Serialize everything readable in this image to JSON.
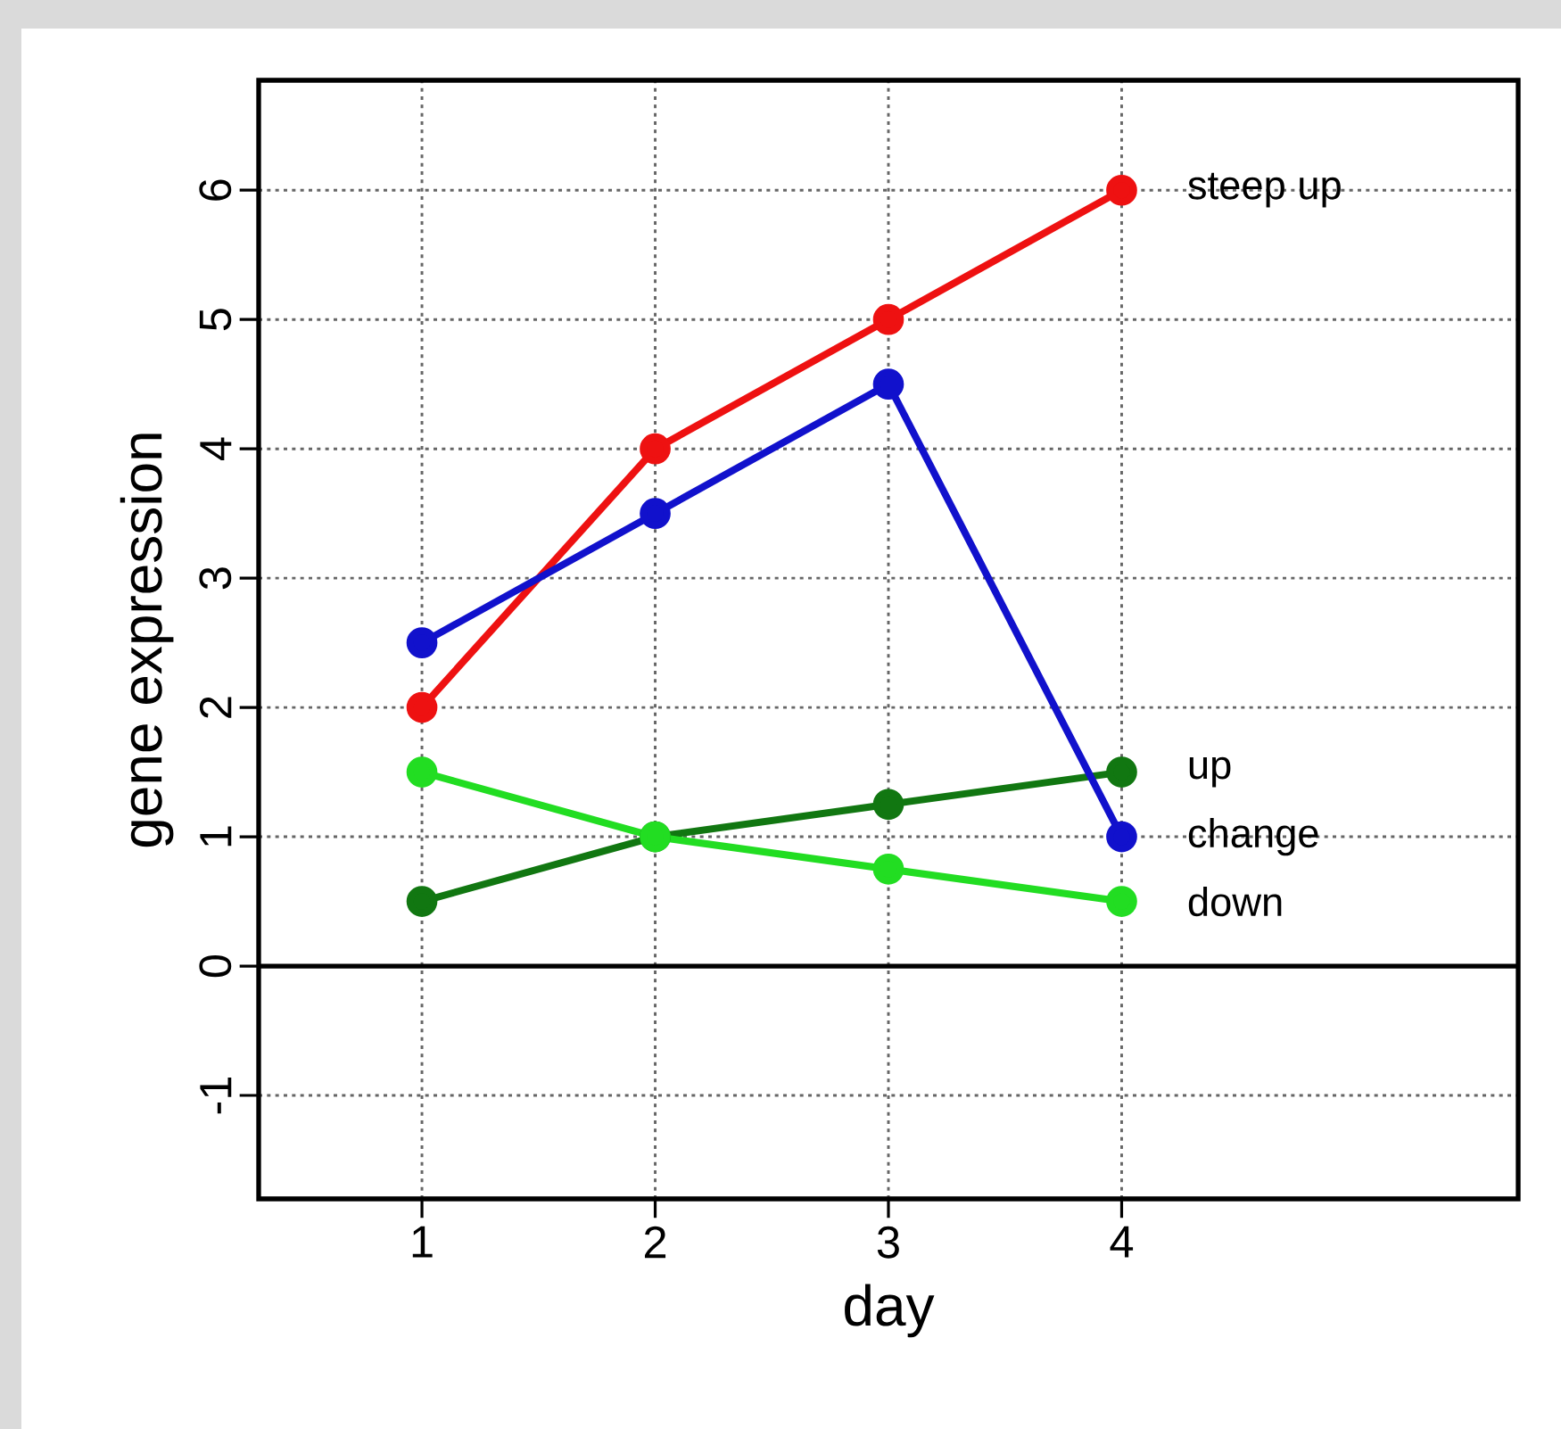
{
  "chart_data": {
    "type": "line",
    "xlabel": "day",
    "ylabel": "gene expression",
    "x": [
      1,
      2,
      3,
      4
    ],
    "series": [
      {
        "name": "steep up",
        "color": "#ee1111",
        "values": [
          2,
          4,
          5,
          6
        ]
      },
      {
        "name": "up",
        "color": "#117711",
        "values": [
          0.5,
          1,
          1.25,
          1.5
        ]
      },
      {
        "name": "change",
        "color": "#1111cc",
        "values": [
          2.5,
          3.5,
          4.5,
          1
        ]
      },
      {
        "name": "down",
        "color": "#22dd22",
        "values": [
          1.5,
          1,
          0.75,
          0.5
        ]
      }
    ],
    "xlim": [
      0.3,
      5.7
    ],
    "ylim": [
      -1.8,
      6.85
    ],
    "xticks": [
      1,
      2,
      3,
      4
    ],
    "yticks": [
      -1,
      0,
      1,
      2,
      3,
      4,
      5,
      6
    ],
    "ref_lines": [
      {
        "axis": "y",
        "value": 0,
        "color": "#000000"
      }
    ],
    "grid": true,
    "marker": "circle",
    "line_style": "solid",
    "legend": false
  }
}
